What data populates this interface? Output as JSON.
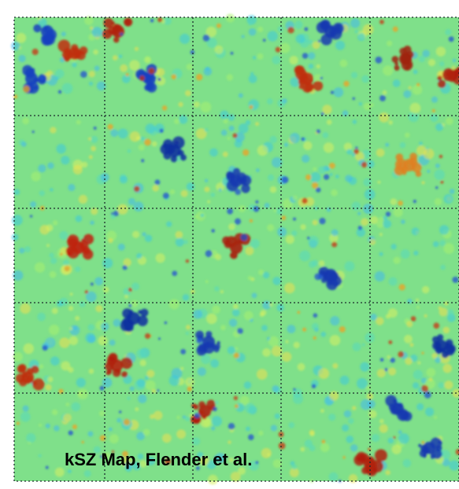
{
  "caption": "kSZ Map, Flender et al."
}
